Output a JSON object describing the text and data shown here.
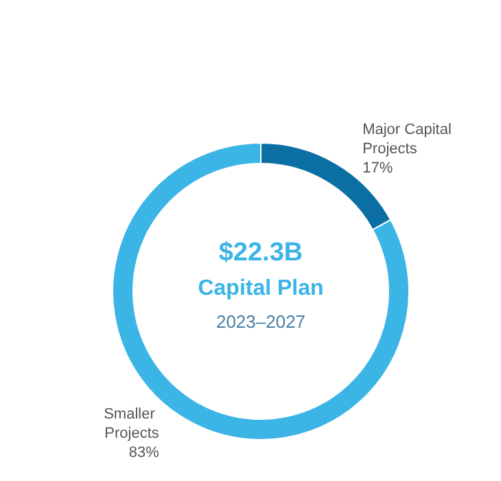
{
  "chart_data": {
    "type": "donut",
    "categories": [
      "Major Capital Projects",
      "Smaller Projects"
    ],
    "values": [
      17,
      83
    ],
    "colors": [
      "#0b6fa4",
      "#3bb4e6"
    ],
    "value_labels": [
      "17%",
      "83%"
    ],
    "legend": false,
    "annotations": [
      "$22.3B",
      "Capital Plan",
      "2023–2027"
    ]
  }
}
